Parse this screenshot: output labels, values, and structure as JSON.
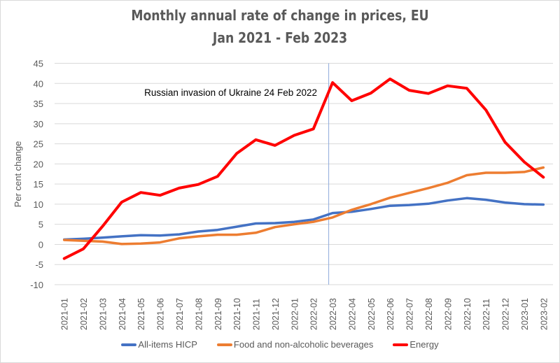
{
  "chart_data": {
    "type": "line",
    "title": "Monthly annual rate of change in prices, EU",
    "subtitle": "Jan 2021 - Feb 2023",
    "xlabel": "",
    "ylabel": "Per cent change",
    "ylim": [
      -10,
      45
    ],
    "yticks": [
      -10,
      -5,
      0,
      5,
      10,
      15,
      20,
      25,
      30,
      35,
      40,
      45
    ],
    "grid": true,
    "legend_position": "bottom",
    "categories": [
      "2021-01",
      "2021-02",
      "2021-03",
      "2021-04",
      "2021-05",
      "2021-06",
      "2021-07",
      "2021-08",
      "2021-09",
      "2021-10",
      "2021-11",
      "2021-12",
      "2022-01",
      "2022-02",
      "2022-03",
      "2022-04",
      "2022-05",
      "2022-06",
      "2022-07",
      "2022-08",
      "2022-09",
      "2022-10",
      "2022-11",
      "2022-12",
      "2023-01",
      "2023-02"
    ],
    "series": [
      {
        "name": "All-items HICP",
        "color": "#4472c4",
        "values": [
          1.2,
          1.4,
          1.7,
          2.0,
          2.3,
          2.2,
          2.5,
          3.2,
          3.6,
          4.4,
          5.2,
          5.3,
          5.6,
          6.2,
          7.8,
          8.1,
          8.8,
          9.6,
          9.8,
          10.1,
          10.9,
          11.5,
          11.1,
          10.4,
          10.0,
          9.9
        ]
      },
      {
        "name": "Food and non-alcoholic beverages",
        "color": "#ed7d31",
        "values": [
          1.1,
          0.9,
          0.7,
          0.1,
          0.2,
          0.5,
          1.5,
          2.0,
          2.4,
          2.4,
          2.9,
          4.3,
          5.0,
          5.6,
          6.7,
          8.6,
          10.0,
          11.6,
          12.8,
          14.0,
          15.3,
          17.2,
          17.8,
          17.8,
          18.0,
          19.1
        ]
      },
      {
        "name": "Energy",
        "color": "#ff0000",
        "values": [
          -3.5,
          -1.1,
          4.5,
          10.5,
          12.9,
          12.2,
          14.0,
          14.9,
          16.9,
          22.6,
          26.0,
          24.6,
          27.1,
          28.7,
          40.2,
          35.7,
          37.6,
          41.1,
          38.3,
          37.5,
          39.4,
          38.8,
          33.4,
          25.4,
          20.5,
          16.7
        ]
      }
    ],
    "annotations": [
      {
        "text": "Russian invasion of Ukraine 24 Feb 2022",
        "x_position": "between 2022-02 and 2022-03",
        "marker": "vertical-line"
      }
    ]
  }
}
